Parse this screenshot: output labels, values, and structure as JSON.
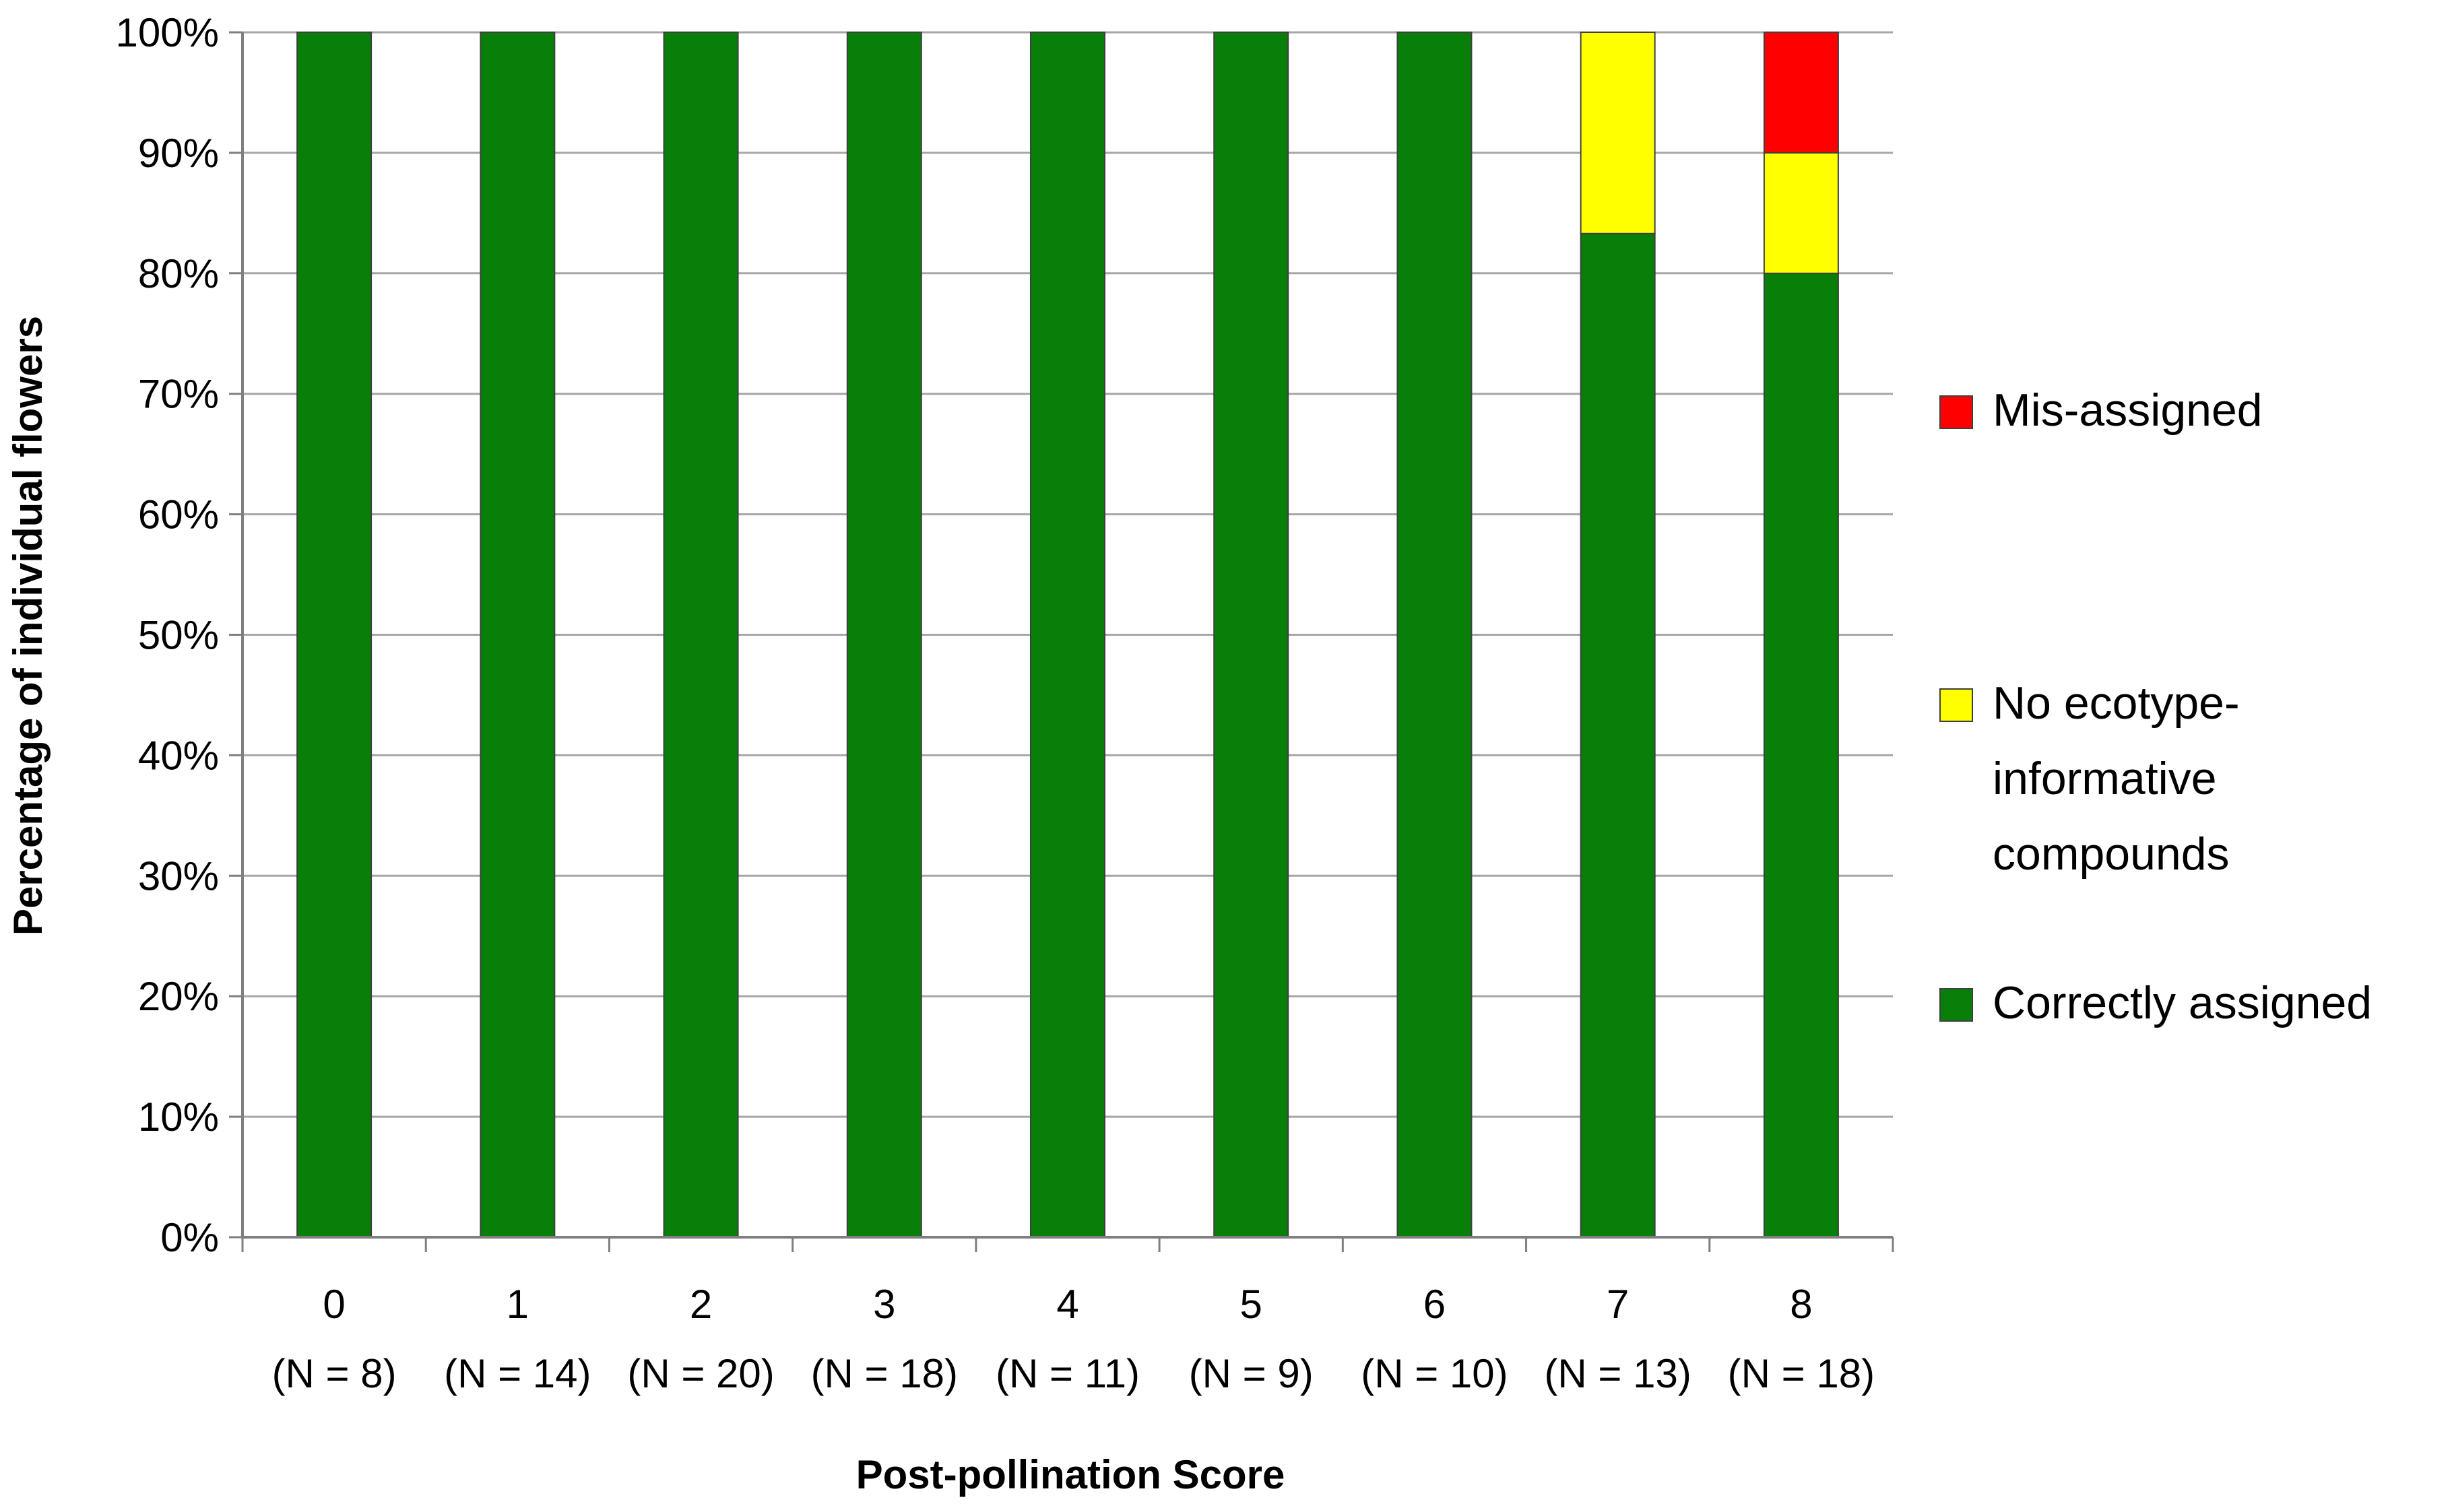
{
  "chart_data": {
    "type": "bar",
    "stacked": true,
    "categories": [
      "0",
      "1",
      "2",
      "3",
      "4",
      "5",
      "6",
      "7",
      "8"
    ],
    "category_sublabels": [
      "(N = 8)",
      "(N = 14)",
      "(N = 20)",
      "(N = 18)",
      "(N = 11)",
      "(N = 9)",
      "(N = 10)",
      "(N = 13)",
      "(N = 18)"
    ],
    "series": [
      {
        "name": "Correctly assigned",
        "color": "#087f08",
        "values": [
          100,
          100,
          100,
          100,
          100,
          100,
          100,
          83.3,
          80
        ]
      },
      {
        "name": "No ecotype-informative compounds",
        "color": "#ffff00",
        "values": [
          0,
          0,
          0,
          0,
          0,
          0,
          0,
          16.7,
          10
        ]
      },
      {
        "name": "Mis-assigned",
        "color": "#ff0000",
        "values": [
          0,
          0,
          0,
          0,
          0,
          0,
          0,
          0,
          10
        ]
      }
    ],
    "legend_display": [
      {
        "lines": [
          "Mis-assigned"
        ],
        "color": "#ff0000"
      },
      {
        "lines": [
          "No ecotype-",
          "informative",
          "compounds"
        ],
        "color": "#ffff00"
      },
      {
        "lines": [
          "Correctly assigned"
        ],
        "color": "#087f08"
      }
    ],
    "yticks": [
      "0%",
      "10%",
      "20%",
      "30%",
      "40%",
      "50%",
      "60%",
      "70%",
      "80%",
      "90%",
      "100%"
    ],
    "ylim": [
      0,
      100
    ],
    "xlabel": "Post-pollination Score",
    "ylabel": "Percentage of individual flowers",
    "grid": true,
    "legend_position": "right"
  }
}
